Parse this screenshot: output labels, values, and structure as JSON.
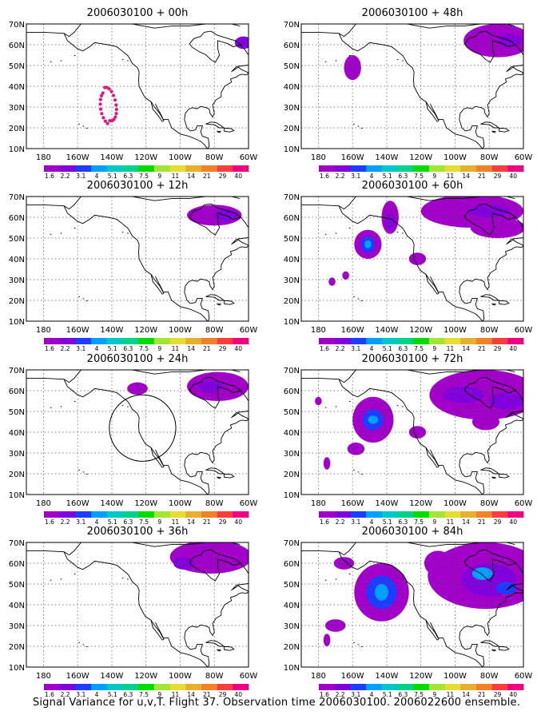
{
  "caption": "Signal Variance for u,v,T. Flight 37. Observation time 2006030100. 2006022600 ensemble.",
  "lat_labels": [
    "70N",
    "60N",
    "50N",
    "40N",
    "30N",
    "20N",
    "10N"
  ],
  "lon_labels": [
    "180",
    "160W",
    "140W",
    "120W",
    "100W",
    "80W",
    "60W"
  ],
  "colorbar": {
    "labels": [
      "1.6",
      "2.2",
      "3.1",
      "4",
      "5.1",
      "6.3",
      "7.5",
      "9",
      "11",
      "14",
      "21",
      "29",
      "40"
    ],
    "colors": [
      "#a000c8",
      "#8200dc",
      "#1e3cff",
      "#00a0ff",
      "#00c8c8",
      "#00d28c",
      "#00dc00",
      "#a0e632",
      "#e6dc32",
      "#e6af2d",
      "#f08228",
      "#fa3c3c",
      "#f00082"
    ]
  },
  "panels": [
    {
      "title": "2006030100 + 00h",
      "flight_track": true,
      "track_color": "#e0187a",
      "blobs": [
        {
          "lon": -63,
          "lat": 61,
          "rx": 5,
          "ry": 3,
          "level": 1
        }
      ]
    },
    {
      "title": "2006030100 + 12h",
      "blobs": [
        {
          "lon": -80,
          "lat": 61,
          "rx": 16,
          "ry": 5,
          "level": 0
        },
        {
          "lon": -73,
          "lat": 61,
          "rx": 7,
          "ry": 3,
          "level": 1
        }
      ]
    },
    {
      "title": "2006030100 + 24h",
      "circle": {
        "lon": -122,
        "lat": 42,
        "r": 10
      },
      "blobs": [
        {
          "lon": -125,
          "lat": 61,
          "rx": 6,
          "ry": 3,
          "level": 0
        },
        {
          "lon": -78,
          "lat": 62,
          "rx": 18,
          "ry": 7,
          "level": 0
        },
        {
          "lon": -82,
          "lat": 62,
          "rx": 7,
          "ry": 3,
          "level": 1
        }
      ]
    },
    {
      "title": "2006030100 + 36h",
      "blobs": [
        {
          "lon": -82,
          "lat": 63,
          "rx": 24,
          "ry": 8,
          "level": 0
        },
        {
          "lon": -98,
          "lat": 60,
          "rx": 6,
          "ry": 3,
          "level": 1
        }
      ]
    },
    {
      "title": "2006030100 + 48h",
      "blobs": [
        {
          "lon": -160,
          "lat": 49,
          "rx": 5,
          "ry": 6,
          "level": 0
        },
        {
          "lon": -75,
          "lat": 62,
          "rx": 20,
          "ry": 8,
          "level": 0
        },
        {
          "lon": -68,
          "lat": 62,
          "rx": 7,
          "ry": 3,
          "level": 1
        }
      ]
    },
    {
      "title": "2006030100 + 60h",
      "blobs": [
        {
          "lon": -151,
          "lat": 47,
          "rx": 8,
          "ry": 7,
          "level": 0
        },
        {
          "lon": -151,
          "lat": 47,
          "rx": 4,
          "ry": 4,
          "level": 2
        },
        {
          "lon": -151,
          "lat": 47,
          "rx": 2,
          "ry": 2,
          "level": 3
        },
        {
          "lon": -172,
          "lat": 29,
          "rx": 2,
          "ry": 2,
          "level": 0
        },
        {
          "lon": -164,
          "lat": 32,
          "rx": 2,
          "ry": 2,
          "level": 0
        },
        {
          "lon": -138,
          "lat": 60,
          "rx": 5,
          "ry": 8,
          "level": 0
        },
        {
          "lon": -138,
          "lat": 58,
          "rx": 3,
          "ry": 4,
          "level": 1
        },
        {
          "lon": -122,
          "lat": 40,
          "rx": 5,
          "ry": 3,
          "level": 0
        },
        {
          "lon": -90,
          "lat": 63,
          "rx": 30,
          "ry": 8,
          "level": 0
        },
        {
          "lon": -75,
          "lat": 55,
          "rx": 16,
          "ry": 5,
          "level": 0
        },
        {
          "lon": -80,
          "lat": 63,
          "rx": 12,
          "ry": 3,
          "level": 1
        }
      ]
    },
    {
      "title": "2006030100 + 72h",
      "blobs": [
        {
          "lon": -148,
          "lat": 46,
          "rx": 12,
          "ry": 11,
          "level": 0
        },
        {
          "lon": -148,
          "lat": 46,
          "rx": 6,
          "ry": 5,
          "level": 2
        },
        {
          "lon": -148,
          "lat": 46,
          "rx": 3,
          "ry": 2,
          "level": 3
        },
        {
          "lon": -158,
          "lat": 32,
          "rx": 5,
          "ry": 3,
          "level": 0
        },
        {
          "lon": -175,
          "lat": 25,
          "rx": 2,
          "ry": 3,
          "level": 0
        },
        {
          "lon": -180,
          "lat": 55,
          "rx": 2,
          "ry": 2,
          "level": 0
        },
        {
          "lon": -122,
          "lat": 40,
          "rx": 5,
          "ry": 3,
          "level": 0
        },
        {
          "lon": -83,
          "lat": 58,
          "rx": 32,
          "ry": 12,
          "level": 0
        },
        {
          "lon": -95,
          "lat": 58,
          "rx": 12,
          "ry": 4,
          "level": 1
        },
        {
          "lon": -70,
          "lat": 55,
          "rx": 10,
          "ry": 4,
          "level": 1
        },
        {
          "lon": -82,
          "lat": 45,
          "rx": 8,
          "ry": 4,
          "level": 0
        }
      ]
    },
    {
      "title": "2006030100 + 84h",
      "blobs": [
        {
          "lon": -143,
          "lat": 46,
          "rx": 16,
          "ry": 14,
          "level": 0
        },
        {
          "lon": -143,
          "lat": 46,
          "rx": 9,
          "ry": 8,
          "level": 2
        },
        {
          "lon": -143,
          "lat": 46,
          "rx": 4,
          "ry": 4,
          "level": 3
        },
        {
          "lon": -165,
          "lat": 60,
          "rx": 6,
          "ry": 3,
          "level": 0
        },
        {
          "lon": -170,
          "lat": 30,
          "rx": 6,
          "ry": 3,
          "level": 0
        },
        {
          "lon": -175,
          "lat": 23,
          "rx": 2,
          "ry": 3,
          "level": 0
        },
        {
          "lon": -82,
          "lat": 54,
          "rx": 34,
          "ry": 16,
          "level": 0
        },
        {
          "lon": -80,
          "lat": 52,
          "rx": 16,
          "ry": 8,
          "level": 1
        },
        {
          "lon": -84,
          "lat": 55,
          "rx": 6,
          "ry": 3,
          "level": 3
        },
        {
          "lon": -70,
          "lat": 48,
          "rx": 6,
          "ry": 3,
          "level": 2
        },
        {
          "lon": -110,
          "lat": 60,
          "rx": 8,
          "ry": 6,
          "level": 0
        }
      ]
    }
  ]
}
